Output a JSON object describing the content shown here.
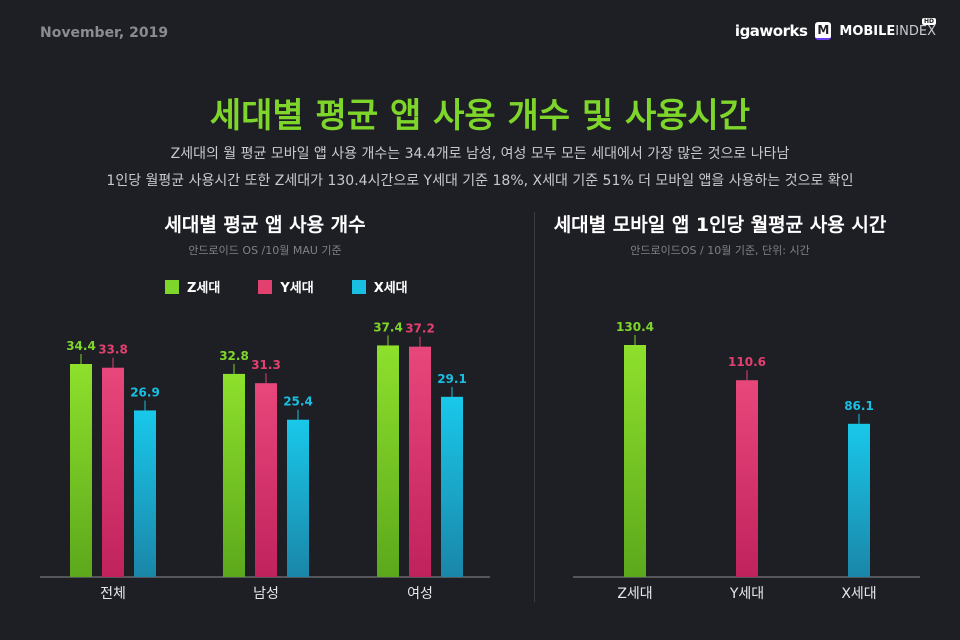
{
  "header": {
    "date": "November, 2019",
    "logo_igaworks": "igaworks",
    "logo_mobileindex_bold": "MOBILE",
    "logo_mobileindex_light": "INDEX",
    "logo_hd": "HD"
  },
  "title": "세대별 평균 앱 사용 개수 및 사용시간",
  "subtitle_lines": [
    "Z세대의 월 평균 모바일 앱 사용 개수는 34.4개로 남성, 여성 모두 모든 세대에서 가장 많은 것으로 나타남",
    "1인당 월평균 사용시간 또한 Z세대가 130.4시간으로 Y세대 기준 18%, X세대 기준 51% 더 모바일 앱을 사용하는 것으로 확인"
  ],
  "colors": {
    "Z세대": "#7fd62a",
    "Y세대": "#e2406f",
    "X세대": "#19bfe0",
    "background": "#1e1f25"
  },
  "chart_data": [
    {
      "type": "bar",
      "title": "세대별 평균 앱 사용 개수",
      "subtitle": "안드로이드 OS /10월 MAU 기준",
      "legend_position": "top",
      "categories": [
        "전체",
        "남성",
        "여성"
      ],
      "series": [
        {
          "name": "Z세대",
          "values": [
            34.4,
            32.8,
            37.4
          ]
        },
        {
          "name": "Y세대",
          "values": [
            33.8,
            31.3,
            37.2
          ]
        },
        {
          "name": "X세대",
          "values": [
            26.9,
            25.4,
            29.1
          ]
        }
      ],
      "ylim": [
        0,
        40
      ],
      "grid": false
    },
    {
      "type": "bar",
      "title": "세대별 모바일 앱 1인당 월평균 사용 시간",
      "subtitle": "안드로이드OS / 10월 기준, 단위: 시간",
      "categories": [
        "Z세대",
        "Y세대",
        "X세대"
      ],
      "values": [
        130.4,
        110.6,
        86.1
      ],
      "ylim": [
        0,
        150
      ],
      "grid": false
    }
  ]
}
